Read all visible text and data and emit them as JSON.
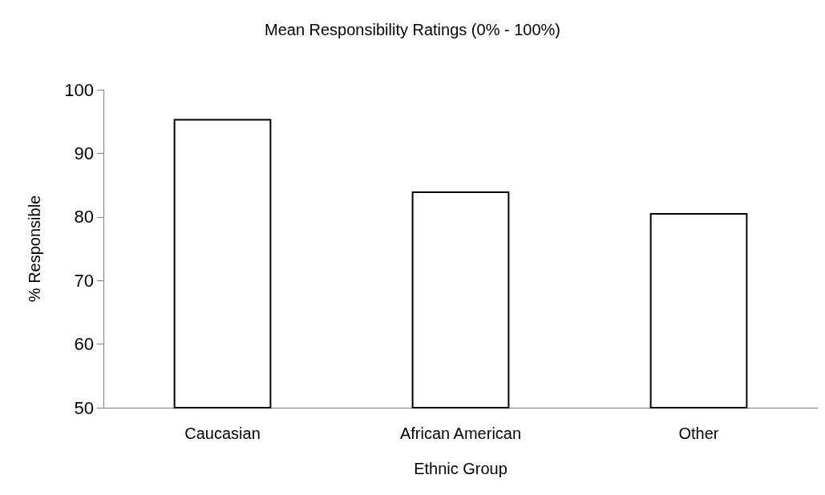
{
  "chart_data": {
    "type": "bar",
    "title": "Mean Responsibility Ratings (0% - 100%)",
    "xlabel": "Ethnic Group",
    "ylabel": "% Responsible",
    "categories": [
      "Caucasian",
      "African American",
      "Other"
    ],
    "values": [
      95.4,
      84.0,
      80.6
    ],
    "color": "#ffffff",
    "ylim": [
      50,
      100
    ],
    "yticks": [
      50,
      60,
      70,
      80,
      90,
      100
    ]
  }
}
